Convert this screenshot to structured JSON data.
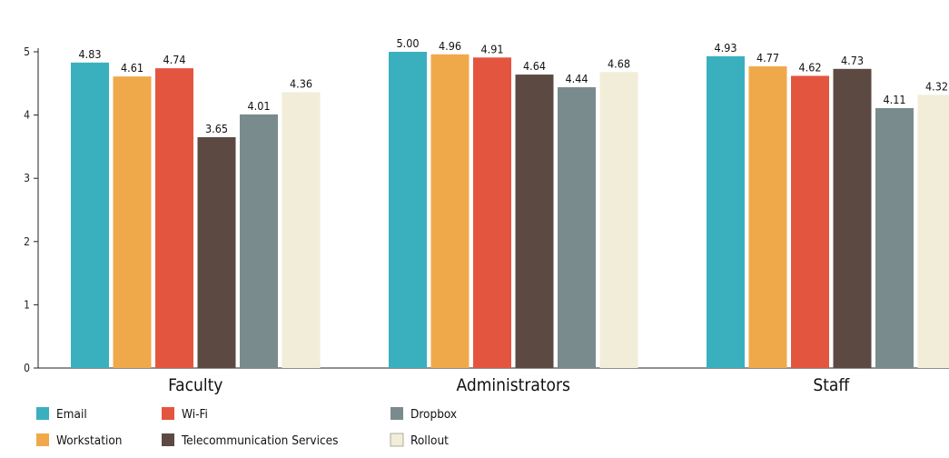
{
  "chart_data": {
    "type": "bar",
    "categories": [
      "Faculty",
      "Administrators",
      "Staff"
    ],
    "ylim": [
      0,
      5
    ],
    "yticks": [
      0,
      1,
      2,
      3,
      4,
      5
    ],
    "grid": false,
    "legend_position": "bottom-left",
    "series": [
      {
        "name": "Email",
        "color": "#3AB0BF",
        "values": [
          4.83,
          5.0,
          4.93
        ],
        "labels": [
          "4.83",
          "5.00",
          "4.93"
        ]
      },
      {
        "name": "Workstation",
        "color": "#F0A94A",
        "values": [
          4.61,
          4.96,
          4.77
        ],
        "labels": [
          "4.61",
          "4.96",
          "4.77"
        ]
      },
      {
        "name": "Wi-Fi",
        "color": "#E45540",
        "values": [
          4.74,
          4.91,
          4.62
        ],
        "labels": [
          "4.74",
          "4.91",
          "4.62"
        ]
      },
      {
        "name": "Telecommunication Services",
        "color": "#5C4A42",
        "values": [
          3.65,
          4.64,
          4.73
        ],
        "labels": [
          "3.65",
          "4.64",
          "4.73"
        ]
      },
      {
        "name": "Dropbox",
        "color": "#7A8B8D",
        "values": [
          4.01,
          4.44,
          4.11
        ],
        "labels": [
          "4.01",
          "4.44",
          "4.11"
        ]
      },
      {
        "name": "Rollout",
        "color": "#F1EDD8",
        "values": [
          4.36,
          4.68,
          4.32
        ],
        "labels": [
          "4.36",
          "4.68",
          "4.32"
        ]
      }
    ]
  }
}
